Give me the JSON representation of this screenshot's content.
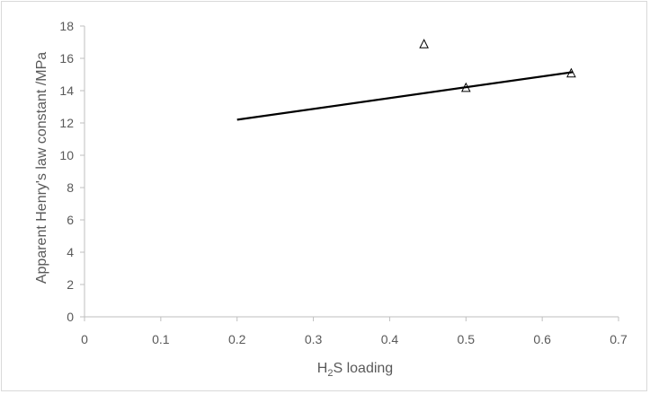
{
  "chart_data": {
    "type": "scatter",
    "xlabel": {
      "prefix": "H",
      "subscript": "2",
      "suffix": "S loading"
    },
    "ylabel": "Apparent Henry's law constant /MPa",
    "xlim": [
      0,
      0.7
    ],
    "ylim": [
      0,
      18
    ],
    "x_ticks": [
      0,
      0.1,
      0.2,
      0.3,
      0.4,
      0.5,
      0.6,
      0.7
    ],
    "x_tick_labels": [
      "0",
      "0.1",
      "0.2",
      "0.3",
      "0.4",
      "0.5",
      "0.6",
      "0.7"
    ],
    "y_ticks": [
      0,
      2,
      4,
      6,
      8,
      10,
      12,
      14,
      16,
      18
    ],
    "y_tick_labels": [
      "0",
      "2",
      "4",
      "6",
      "8",
      "10",
      "12",
      "14",
      "16",
      "18"
    ],
    "grid": false,
    "legend": false,
    "series": [
      {
        "kind": "scatter",
        "marker": "open-triangle",
        "x": [
          0.445,
          0.5,
          0.638
        ],
        "y": [
          16.9,
          14.2,
          15.1
        ]
      },
      {
        "kind": "line",
        "x": [
          0.2,
          0.64
        ],
        "y": [
          12.2,
          15.15
        ]
      }
    ],
    "colors": {
      "axis": "#bfbfbf",
      "text": "#595959",
      "series": "#000000"
    }
  }
}
